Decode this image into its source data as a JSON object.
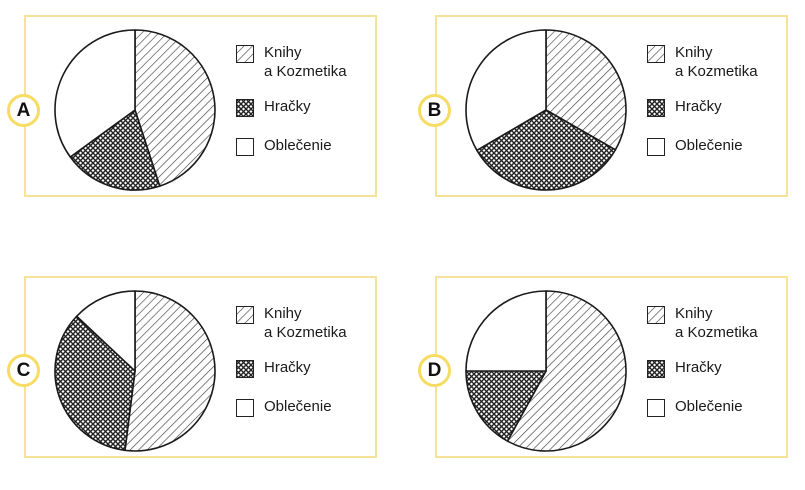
{
  "colors": {
    "border": "#f6e39a",
    "badge_border": "#f7dc63",
    "ink": "#1a1a1a"
  },
  "legend": {
    "items": [
      {
        "line1": "Knihy",
        "line2": "a Kozmetika",
        "pattern": "diagonal-hatch"
      },
      {
        "line1": "Hračky",
        "pattern": "crosshatch"
      },
      {
        "line1": "Oblečenie",
        "pattern": "white"
      }
    ]
  },
  "chart_data": [
    {
      "label": "A",
      "type": "pie",
      "categories": [
        "Knihy a Kozmetika",
        "Hračky",
        "Oblečenie"
      ],
      "values": [
        45,
        20,
        35
      ]
    },
    {
      "label": "B",
      "type": "pie",
      "categories": [
        "Knihy a Kozmetika",
        "Hračky",
        "Oblečenie"
      ],
      "values": [
        33.3,
        33.3,
        33.4
      ]
    },
    {
      "label": "C",
      "type": "pie",
      "categories": [
        "Knihy a Kozmetika",
        "Hračky",
        "Oblečenie"
      ],
      "values": [
        52,
        35,
        13
      ]
    },
    {
      "label": "D",
      "type": "pie",
      "categories": [
        "Knihy a Kozmetika",
        "Hračky",
        "Oblečenie"
      ],
      "values": [
        58,
        17,
        25
      ]
    }
  ]
}
